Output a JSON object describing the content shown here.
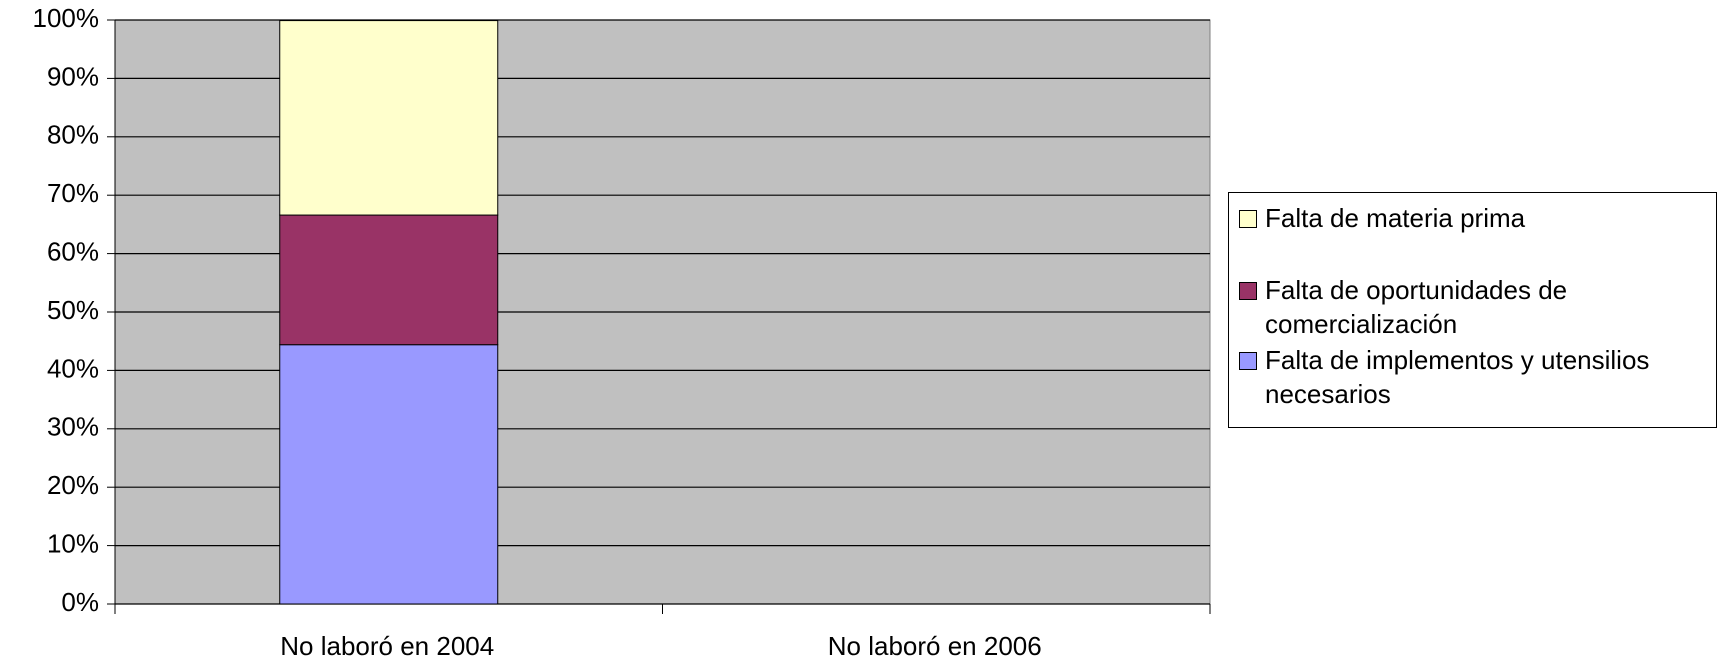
{
  "chart_data": {
    "type": "stacked_bar",
    "categories": [
      "No laboró en 2004",
      "No laboró en 2006"
    ],
    "series": [
      {
        "name": "Falta de implementos y utensilios necesarios",
        "color": "#9999ff",
        "values": [
          44.4,
          null
        ]
      },
      {
        "name": "Falta de oportunidades de comercialización",
        "color": "#993366",
        "values": [
          22.2,
          null
        ]
      },
      {
        "name": "Falta de materia prima",
        "color": "#ffffcc",
        "values": [
          33.3,
          null
        ]
      }
    ],
    "ylim": [
      0,
      100
    ],
    "yticks": [
      {
        "value": 0,
        "label": "0%"
      },
      {
        "value": 10,
        "label": "10%"
      },
      {
        "value": 20,
        "label": "20%"
      },
      {
        "value": 30,
        "label": "30%"
      },
      {
        "value": 40,
        "label": "40%"
      },
      {
        "value": 50,
        "label": "50%"
      },
      {
        "value": 60,
        "label": "60%"
      },
      {
        "value": 70,
        "label": "70%"
      },
      {
        "value": 80,
        "label": "80%"
      },
      {
        "value": 90,
        "label": "90%"
      },
      {
        "value": 100,
        "label": "100%"
      }
    ],
    "grid": true,
    "legend": "right"
  }
}
